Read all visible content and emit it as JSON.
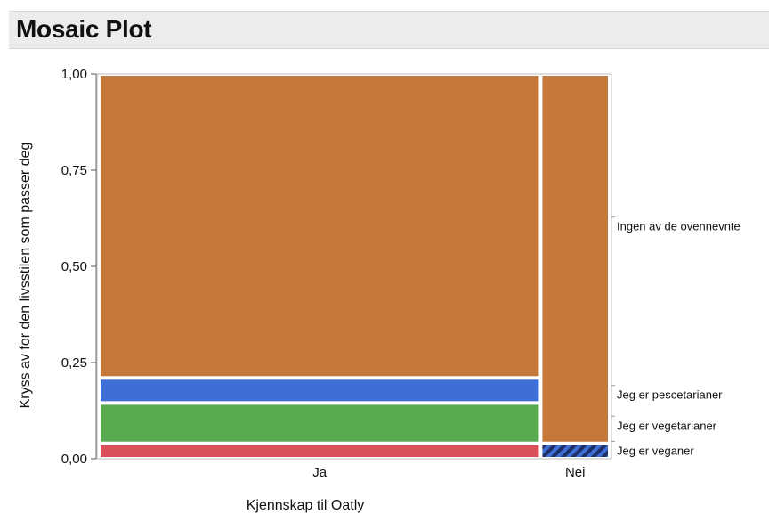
{
  "header": {
    "title": "Mosaic Plot"
  },
  "chart_data": {
    "type": "mosaic",
    "xlabel": "Kjennskap til Oatly",
    "ylabel": "Kryss av for den livsstilen som passer deg",
    "ylim": [
      0,
      1
    ],
    "y_ticks": [
      "0,00",
      "0,25",
      "0,50",
      "0,75",
      "1,00"
    ],
    "y_tick_values": [
      0,
      0.25,
      0.5,
      0.75,
      1
    ],
    "categories": [
      "Ja",
      "Nei"
    ],
    "category_widths": [
      0.87,
      0.13
    ],
    "series": [
      {
        "name": "Jeg er veganer",
        "color": "#d9505a",
        "values": [
          0.04,
          0.04
        ],
        "pattern": [
          false,
          true
        ]
      },
      {
        "name": "Jeg er vegetarianer",
        "color": "#5aaa52",
        "values": [
          0.105,
          0.0
        ],
        "pattern": [
          false,
          false
        ]
      },
      {
        "name": "Jeg er pescetarianer",
        "color": "#3f6fd6",
        "values": [
          0.065,
          0.0
        ],
        "pattern": [
          false,
          false
        ]
      },
      {
        "name": "Ingen av de ovennevnte",
        "color": "#c4793a",
        "values": [
          0.79,
          0.96
        ],
        "pattern": [
          false,
          false
        ]
      }
    ],
    "legend_position": "right"
  }
}
